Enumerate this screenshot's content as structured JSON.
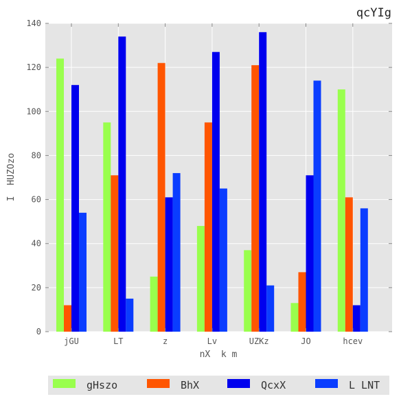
{
  "chart_data": {
    "type": "bar",
    "title": "qcYIg",
    "xlabel": "nX  k m",
    "ylabel": "I  HUZOzo",
    "categories": [
      "jGU",
      "LT",
      "z",
      "Lv",
      "UZKz",
      "JO",
      "hcev"
    ],
    "ylim": [
      0,
      140
    ],
    "yticks": [
      0,
      20,
      40,
      60,
      80,
      100,
      120,
      140
    ],
    "grid": true,
    "legend_position": "bottom",
    "series": [
      {
        "name": "gHszo",
        "color": "#99ff4d",
        "values": [
          124,
          95,
          25,
          48,
          37,
          13,
          110
        ]
      },
      {
        "name": "BhX",
        "color": "#ff5500",
        "values": [
          12,
          71,
          122,
          95,
          121,
          27,
          61
        ]
      },
      {
        "name": "QcxX",
        "color": "#0000ee",
        "values": [
          112,
          134,
          61,
          127,
          136,
          71,
          12
        ]
      },
      {
        "name": "L LNT",
        "color": "#0a3dff",
        "values": [
          54,
          15,
          72,
          65,
          21,
          114,
          56
        ]
      }
    ]
  }
}
